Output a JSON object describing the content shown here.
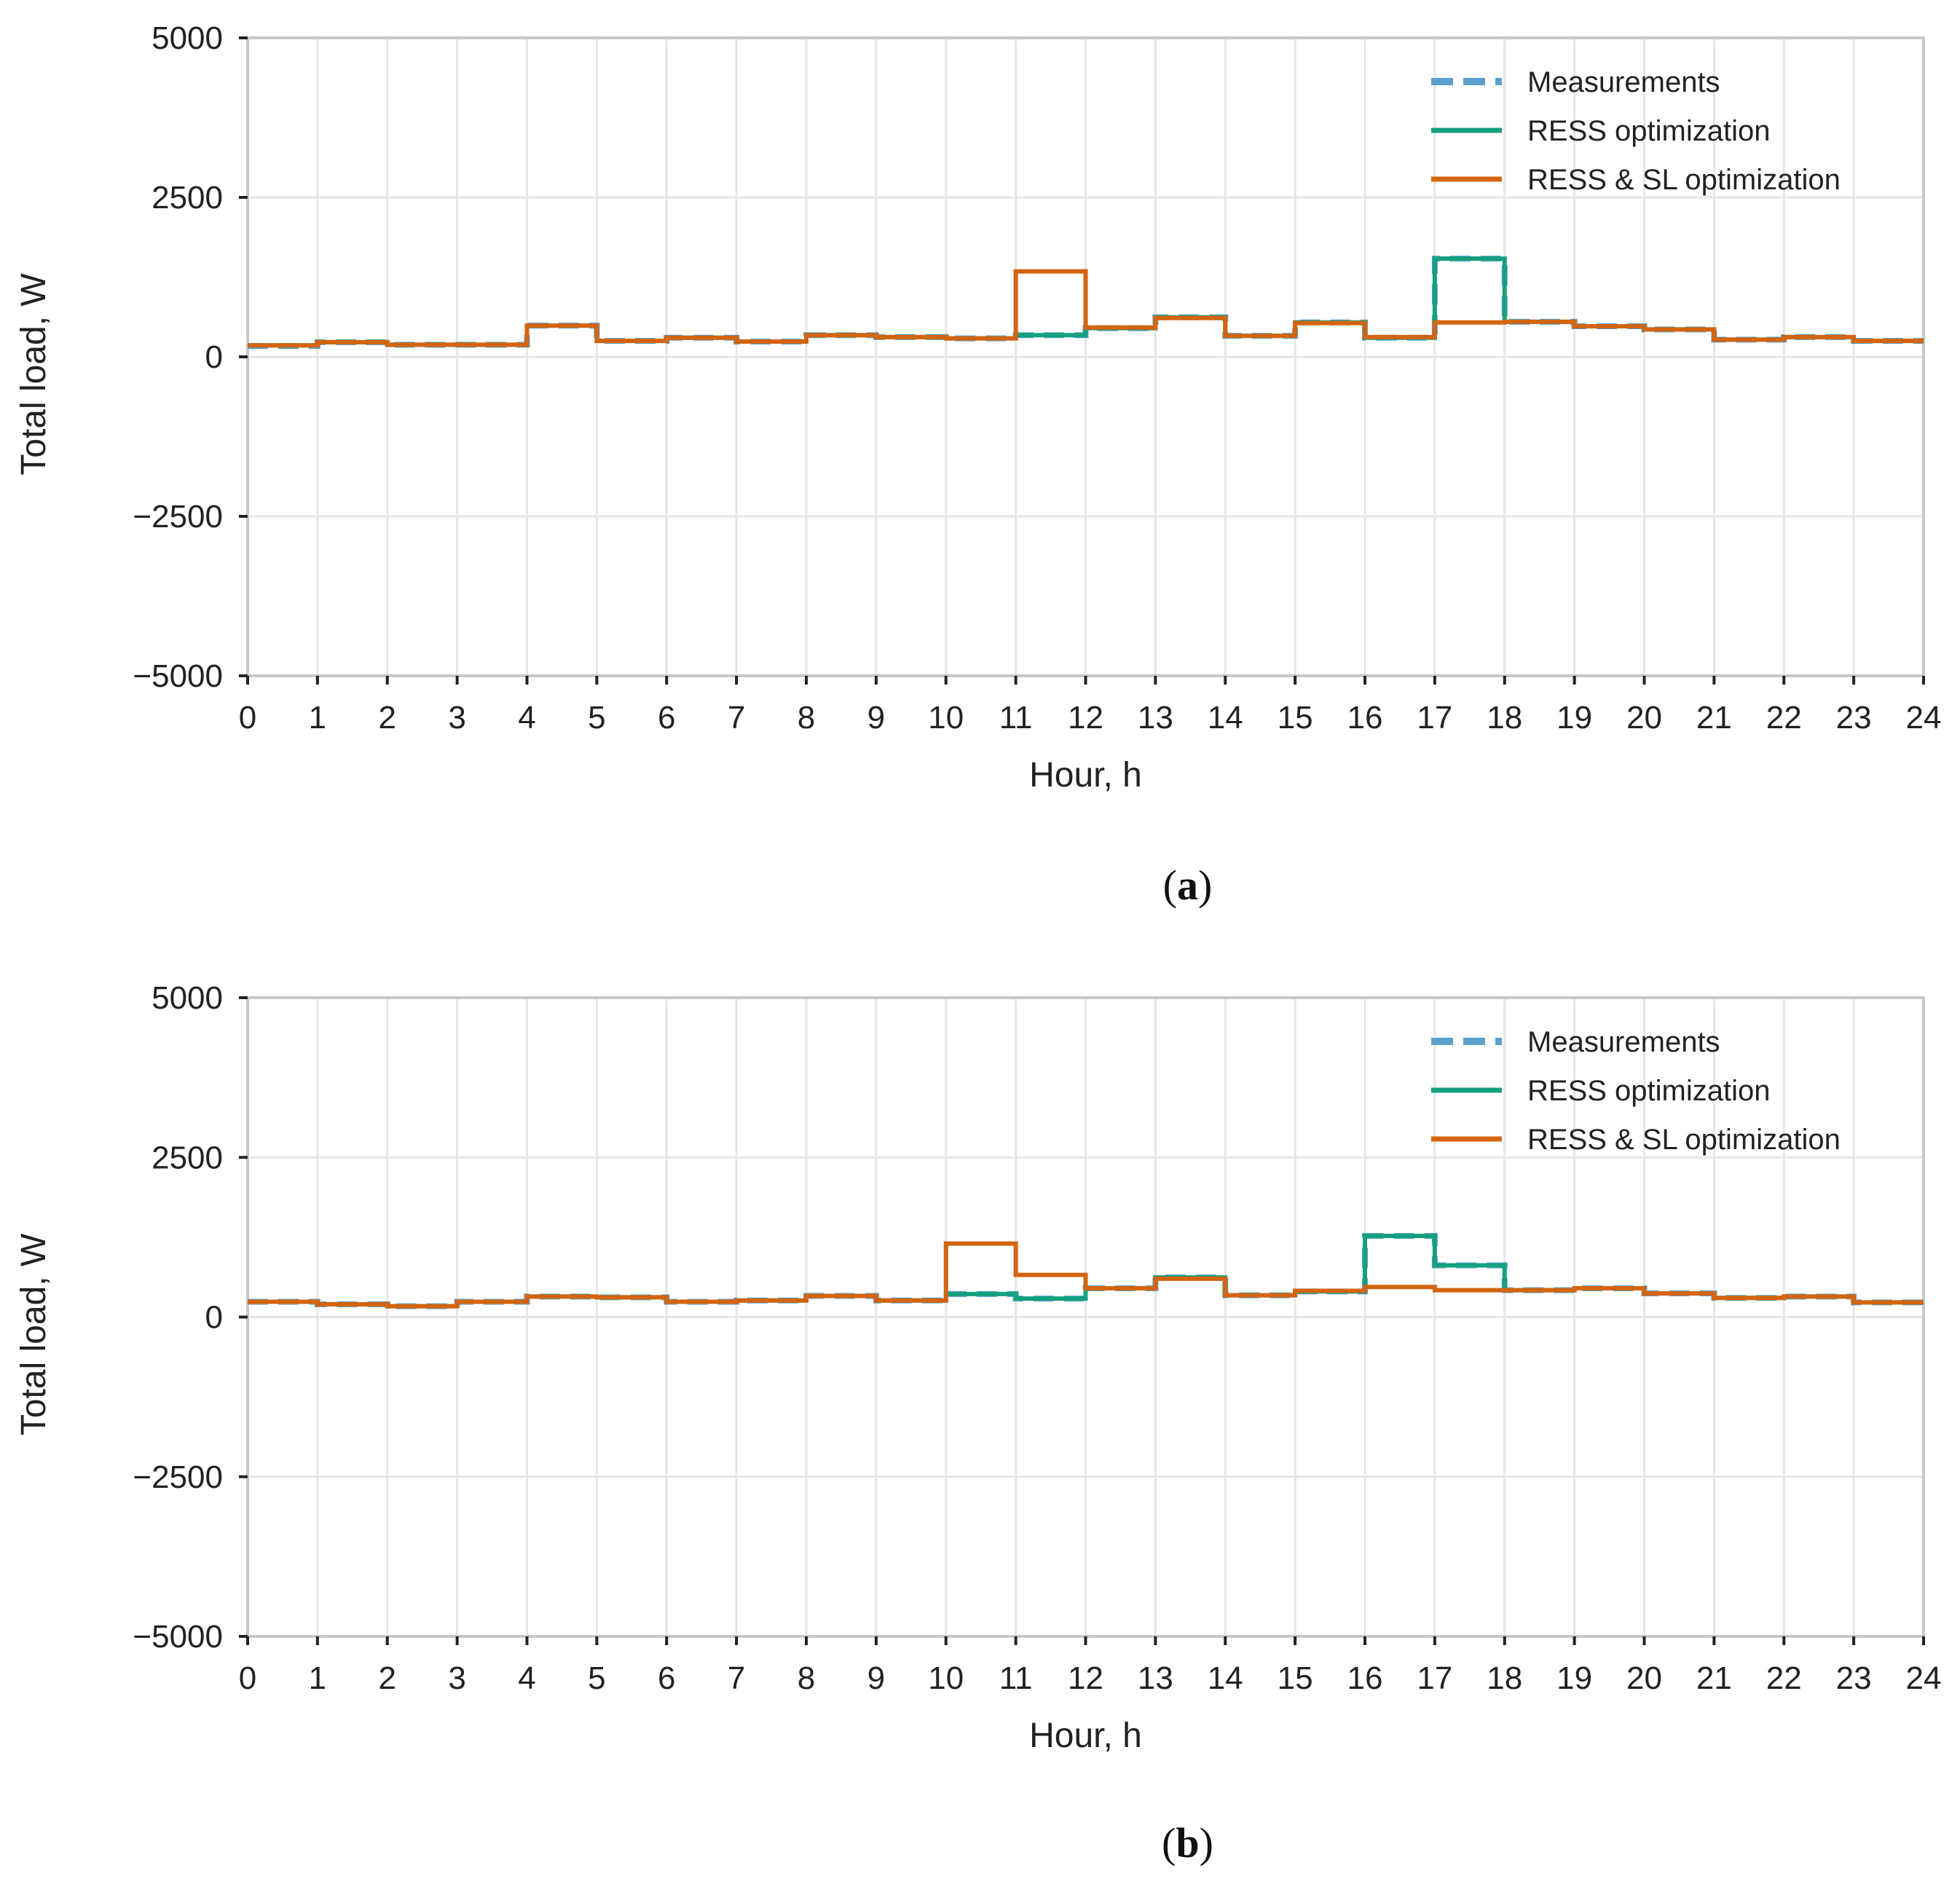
{
  "chart_data": [
    {
      "type": "line",
      "panel": "a",
      "caption": {
        "open": "(",
        "letter": "a",
        "close": ")"
      },
      "xlabel": "Hour, h",
      "ylabel": "Total load, W",
      "xlim": [
        0,
        24
      ],
      "ylim": [
        -5000,
        5000
      ],
      "xticks": [
        0,
        1,
        2,
        3,
        4,
        5,
        6,
        7,
        8,
        9,
        10,
        11,
        12,
        13,
        14,
        15,
        16,
        17,
        18,
        19,
        20,
        21,
        22,
        23,
        24
      ],
      "yticks": [
        -5000,
        -2500,
        0,
        2500,
        5000
      ],
      "ytick_labels": [
        "−5000",
        "−2500",
        "0",
        "2500",
        "5000"
      ],
      "grid": true,
      "legend_position": "top-right",
      "series": [
        {
          "name": "Measurements",
          "style": "dashed",
          "color": "#5aa0cf",
          "values": [
            170,
            230,
            190,
            190,
            490,
            250,
            300,
            240,
            340,
            310,
            290,
            340,
            450,
            620,
            330,
            540,
            300,
            1540,
            550,
            480,
            430,
            270,
            310,
            250
          ]
        },
        {
          "name": "RESS optimization",
          "style": "solid",
          "color": "#14a07e",
          "values": [
            180,
            230,
            190,
            190,
            490,
            250,
            300,
            240,
            340,
            310,
            290,
            340,
            450,
            620,
            330,
            540,
            300,
            1540,
            550,
            480,
            430,
            270,
            310,
            250
          ]
        },
        {
          "name": "RESS & SL optimization",
          "style": "solid",
          "color": "#d4640f",
          "values": [
            180,
            230,
            190,
            190,
            490,
            250,
            300,
            240,
            340,
            310,
            290,
            1340,
            460,
            610,
            330,
            530,
            310,
            540,
            550,
            480,
            430,
            270,
            310,
            250
          ]
        }
      ]
    },
    {
      "type": "line",
      "panel": "b",
      "caption": {
        "open": "(",
        "letter": "b",
        "close": ")"
      },
      "xlabel": "Hour, h",
      "ylabel": "Total load, W",
      "xlim": [
        0,
        24
      ],
      "ylim": [
        -5000,
        5000
      ],
      "xticks": [
        0,
        1,
        2,
        3,
        4,
        5,
        6,
        7,
        8,
        9,
        10,
        11,
        12,
        13,
        14,
        15,
        16,
        17,
        18,
        19,
        20,
        21,
        22,
        23,
        24
      ],
      "yticks": [
        -5000,
        -2500,
        0,
        2500,
        5000
      ],
      "ytick_labels": [
        "−5000",
        "−2500",
        "0",
        "2500",
        "5000"
      ],
      "grid": true,
      "legend_position": "top-right",
      "series": [
        {
          "name": "Measurements",
          "style": "dashed",
          "color": "#5aa0cf",
          "values": [
            240,
            200,
            170,
            240,
            320,
            310,
            240,
            260,
            330,
            260,
            360,
            290,
            450,
            620,
            340,
            400,
            1270,
            810,
            420,
            450,
            370,
            300,
            320,
            230
          ]
        },
        {
          "name": "RESS optimization",
          "style": "solid",
          "color": "#14a07e",
          "values": [
            240,
            200,
            170,
            240,
            320,
            310,
            240,
            260,
            330,
            260,
            360,
            290,
            450,
            620,
            340,
            400,
            1270,
            810,
            420,
            450,
            370,
            300,
            320,
            230
          ]
        },
        {
          "name": "RESS & SL optimization",
          "style": "solid",
          "color": "#d4640f",
          "values": [
            240,
            200,
            170,
            240,
            320,
            310,
            240,
            260,
            330,
            260,
            1150,
            660,
            450,
            600,
            340,
            410,
            470,
            420,
            420,
            450,
            370,
            300,
            320,
            230
          ]
        }
      ]
    }
  ]
}
